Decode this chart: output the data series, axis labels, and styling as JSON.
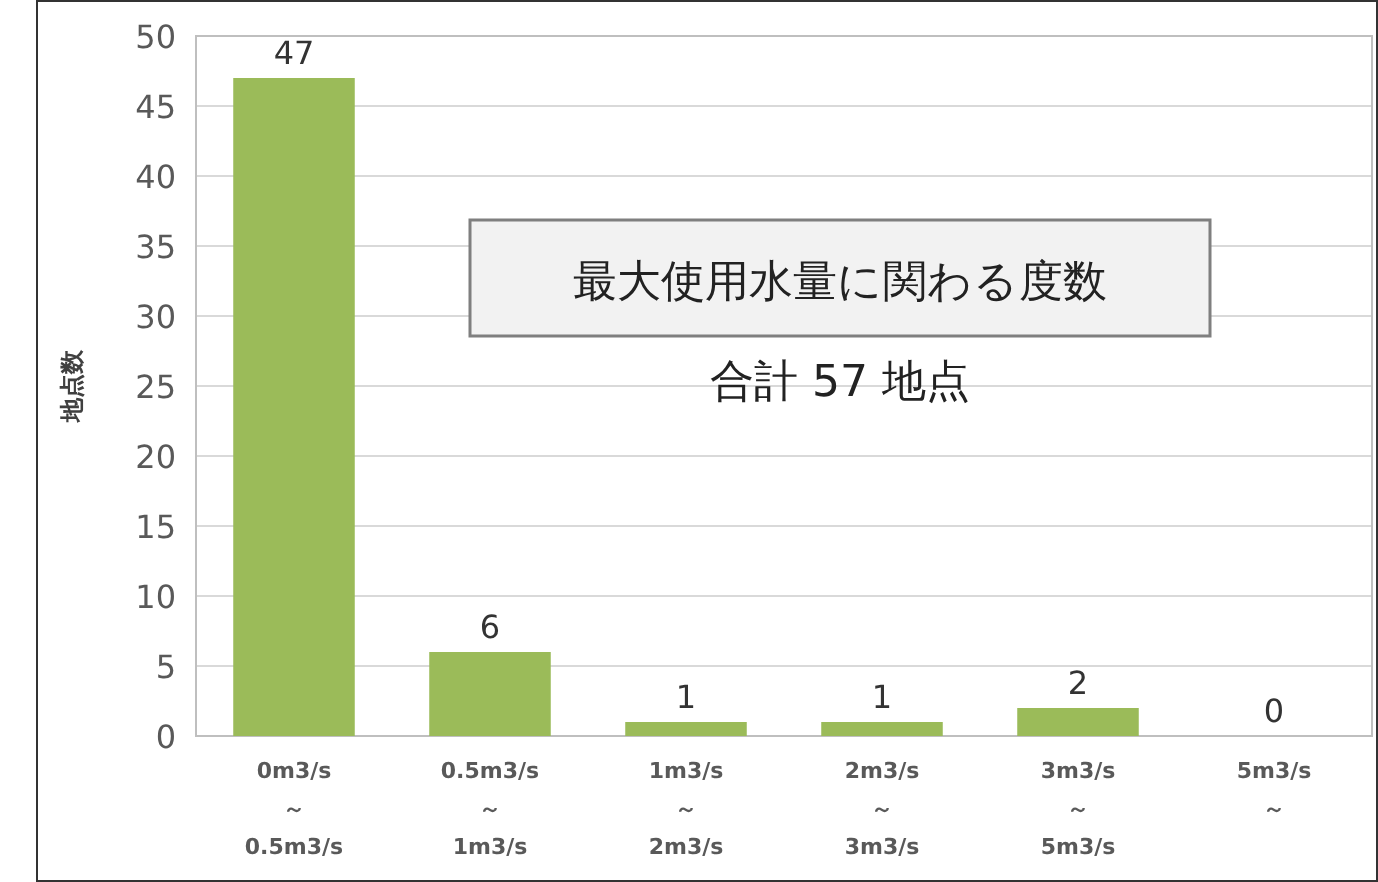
{
  "chart_data": {
    "type": "bar",
    "title": "最大使用水量に関わる度数",
    "subtitle": "合計 57 地点",
    "ylabel": "地点数",
    "categories": [
      "0m3/s\n～\n0.5m3/s",
      "0.5m3/s\n～\n1m3/s",
      "1m3/s\n～\n2m3/s",
      "2m3/s\n～\n3m3/s",
      "3m3/s\n～\n5m3/s",
      "5m3/s\n～"
    ],
    "values": [
      47,
      6,
      1,
      1,
      2,
      0
    ],
    "color": "#9bbb59",
    "ylim": [
      0,
      50
    ],
    "yticks": [
      0,
      5,
      10,
      15,
      20,
      25,
      30,
      35,
      40,
      45,
      50
    ],
    "grid": "y",
    "data_labels": true
  }
}
